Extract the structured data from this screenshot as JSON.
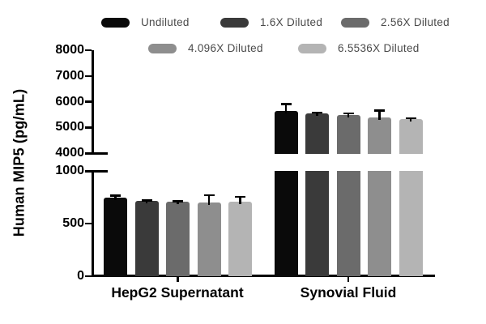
{
  "legend": {
    "items": [
      {
        "label": "Undiluted",
        "color": "#0a0a0a"
      },
      {
        "label": "1.6X Diluted",
        "color": "#3a3a3a"
      },
      {
        "label": "2.56X Diluted",
        "color": "#6b6b6b"
      },
      {
        "label": "4.096X Diluted",
        "color": "#8e8e8e"
      },
      {
        "label": "6.5536X Diluted",
        "color": "#b4b4b4"
      }
    ]
  },
  "chart_data": {
    "type": "bar",
    "title": "",
    "ylabel": "Human MIP5 (pg/mL)",
    "xlabel": "",
    "categories": [
      "HepG2 Supernatant",
      "Synovial Fluid"
    ],
    "series": [
      {
        "name": "Undiluted",
        "color": "#0a0a0a",
        "values": [
          750,
          5650
        ],
        "errors_plus": [
          25,
          300
        ]
      },
      {
        "name": "1.6X Diluted",
        "color": "#3a3a3a",
        "values": [
          715,
          5550
        ],
        "errors_plus": [
          15,
          60
        ]
      },
      {
        "name": "2.56X Diluted",
        "color": "#6b6b6b",
        "values": [
          705,
          5490
        ],
        "errors_plus": [
          15,
          100
        ]
      },
      {
        "name": "4.096X Diluted",
        "color": "#8e8e8e",
        "values": [
          700,
          5390
        ],
        "errors_plus": [
          80,
          310
        ]
      },
      {
        "name": "6.5536X Diluted",
        "color": "#b4b4b4",
        "values": [
          710,
          5320
        ],
        "errors_plus": [
          55,
          80
        ]
      }
    ],
    "axis_break": true,
    "upper_axis": {
      "min": 4000,
      "max": 8000,
      "ticks": [
        8000,
        7000,
        6000,
        5000,
        4000
      ]
    },
    "lower_axis": {
      "min": 0,
      "max": 1000,
      "ticks": [
        1000,
        500,
        0
      ]
    },
    "units": "pg/mL",
    "grid": false,
    "legend_position": "top",
    "error_bars": "upper-only"
  }
}
